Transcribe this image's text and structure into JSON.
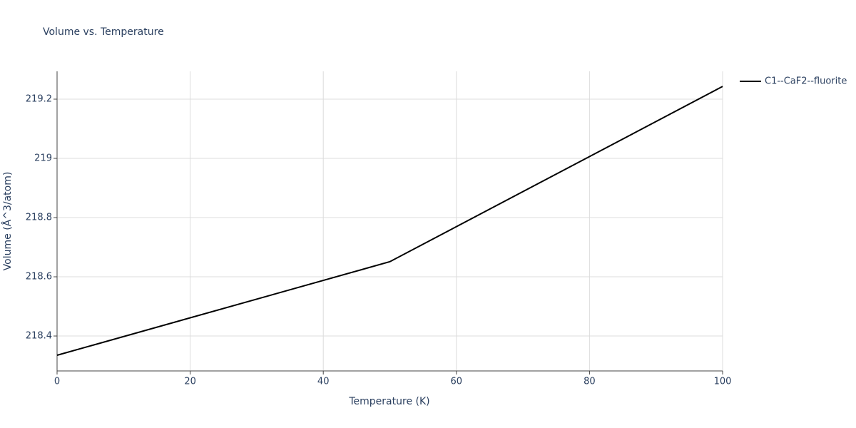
{
  "chart_data": {
    "type": "line",
    "title": "Volume vs. Temperature",
    "x_label": "Temperature (K)",
    "y_label": "Volume (Å^3/atom)",
    "x": [
      0,
      50,
      100
    ],
    "series": [
      {
        "name": "C1--CaF2--fluorite",
        "color": "#000000",
        "values": [
          218.335,
          218.651,
          219.243
        ]
      }
    ],
    "xlim": [
      0,
      100
    ],
    "xticks": [
      0,
      20,
      40,
      60,
      80,
      100
    ],
    "ylim": [
      218.282,
      219.294
    ],
    "yticks": [
      218.4,
      218.6,
      218.8,
      219,
      219.2
    ],
    "grid": true,
    "legend": "top-right"
  }
}
